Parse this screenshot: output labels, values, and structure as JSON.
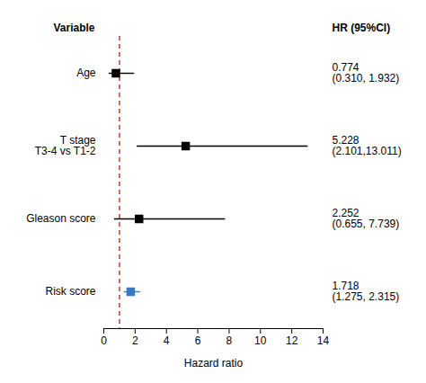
{
  "chart_data": {
    "type": "forest",
    "categories": [
      "Age",
      "T stage\nT3-4 vs T1-2",
      "Gleason score",
      "Risk score"
    ],
    "values": [
      0.774,
      5.228,
      2.252,
      1.718
    ],
    "ci_low": [
      0.31,
      2.101,
      0.655,
      1.275
    ],
    "ci_high": [
      1.932,
      13.011,
      7.739,
      2.315
    ],
    "data_labels": true,
    "value_labels": [
      "0.774\n(0.310, 1.932)",
      "5.228\n(2.101,13.011)",
      "2.252\n(0.655, 7.739)",
      "1.718\n(1.275, 2.315)"
    ],
    "colors": [
      "#000000",
      "#000000",
      "#000000",
      "#3a7abf"
    ],
    "marker": "square",
    "ref_line": {
      "x": 1.0,
      "color": "#c0392b",
      "line_style": "dashed"
    },
    "xlim": [
      0,
      14
    ],
    "xticks": [
      0,
      2,
      4,
      6,
      8,
      10,
      12,
      14
    ],
    "xlabel": "Hazard ratio",
    "category_header": "Variable",
    "value_label_header": "HR (95%CI)",
    "grid": false
  }
}
